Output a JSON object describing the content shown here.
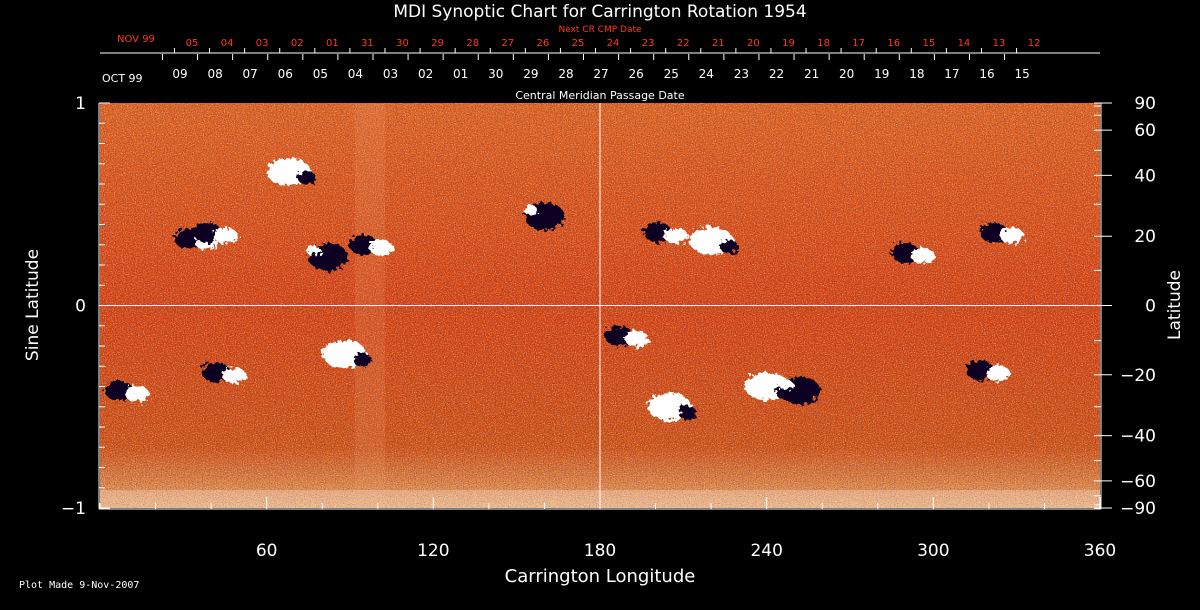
{
  "chart_data": {
    "type": "heatmap",
    "title": "MDI Synoptic Chart for Carrington Rotation 1954",
    "xlabel": "Carrington Longitude",
    "ylabel_left": "Sine Latitude",
    "ylabel_right": "Latitude",
    "xlim": [
      0,
      360
    ],
    "ylim": [
      -1,
      1
    ],
    "x_ticks": [
      60,
      120,
      180,
      240,
      300,
      360
    ],
    "y_ticks_left": [
      {
        "value": 1,
        "label": "1"
      },
      {
        "value": 0,
        "label": "0"
      },
      {
        "value": -1,
        "label": "−1"
      }
    ],
    "y_ticks_right": [
      {
        "lat": 90,
        "label": "90"
      },
      {
        "lat": 60,
        "label": "60"
      },
      {
        "lat": 40,
        "label": "40"
      },
      {
        "lat": 20,
        "label": "20"
      },
      {
        "lat": 0,
        "label": "0"
      },
      {
        "lat": -20,
        "label": "−20"
      },
      {
        "lat": -40,
        "label": "−40"
      },
      {
        "lat": -60,
        "label": "−60"
      },
      {
        "lat": -90,
        "label": "−90"
      }
    ],
    "top_axis_label": "Central Meridian Passage Date",
    "top_axis_month": "OCT 99",
    "top_axis_dates": [
      "09",
      "08",
      "07",
      "06",
      "05",
      "04",
      "03",
      "02",
      "01",
      "30",
      "29",
      "28",
      "27",
      "26",
      "25",
      "24",
      "23",
      "22",
      "21",
      "20",
      "19",
      "18",
      "17",
      "16",
      "15"
    ],
    "next_axis_label": "Next CR CMP Date",
    "next_axis_month": "NOV 99",
    "next_axis_dates": [
      "05",
      "04",
      "03",
      "02",
      "01",
      "31",
      "30",
      "29",
      "28",
      "27",
      "26",
      "25",
      "24",
      "23",
      "22",
      "21",
      "20",
      "19",
      "18",
      "17",
      "16",
      "15",
      "14",
      "13",
      "12"
    ],
    "colors": {
      "background": "#d8400c",
      "positive": "#ffffff",
      "negative": "#0a0520",
      "next_axis": "#ff3a1a",
      "grid": "#ffffff"
    },
    "grid_lines": [
      "sine latitude 0",
      "longitude 180"
    ],
    "regions": [
      {
        "lon": 35,
        "sinlat": 0.33,
        "polarity": "mixed"
      },
      {
        "lon": 42,
        "sinlat": 0.36,
        "polarity": "mixed"
      },
      {
        "lon": 68,
        "sinlat": 0.66,
        "polarity": "positive"
      },
      {
        "lon": 82,
        "sinlat": 0.24,
        "polarity": "negative"
      },
      {
        "lon": 98,
        "sinlat": 0.3,
        "polarity": "mixed"
      },
      {
        "lon": 160,
        "sinlat": 0.44,
        "polarity": "negative"
      },
      {
        "lon": 204,
        "sinlat": 0.36,
        "polarity": "mixed"
      },
      {
        "lon": 220,
        "sinlat": 0.32,
        "polarity": "positive"
      },
      {
        "lon": 293,
        "sinlat": 0.26,
        "polarity": "mixed"
      },
      {
        "lon": 325,
        "sinlat": 0.36,
        "polarity": "mixed"
      },
      {
        "lon": 88,
        "sinlat": -0.24,
        "polarity": "positive"
      },
      {
        "lon": 45,
        "sinlat": -0.33,
        "polarity": "mixed"
      },
      {
        "lon": 10,
        "sinlat": -0.42,
        "polarity": "mixed"
      },
      {
        "lon": 240,
        "sinlat": -0.4,
        "polarity": "positive"
      },
      {
        "lon": 252,
        "sinlat": -0.42,
        "polarity": "negative"
      },
      {
        "lon": 205,
        "sinlat": -0.5,
        "polarity": "positive"
      },
      {
        "lon": 190,
        "sinlat": -0.15,
        "polarity": "mixed"
      },
      {
        "lon": 320,
        "sinlat": -0.32,
        "polarity": "mixed"
      }
    ]
  },
  "footer": {
    "plot_made": "Plot Made 9-Nov-2007"
  }
}
